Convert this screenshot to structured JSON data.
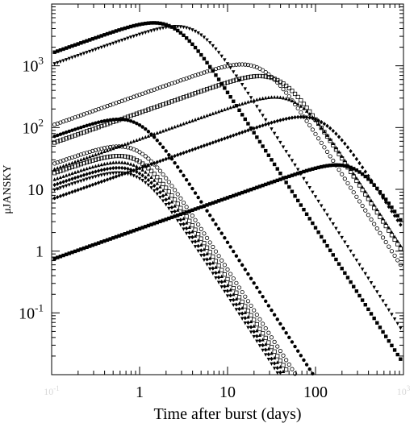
{
  "chart_data": {
    "type": "scatter",
    "title": "",
    "xlabel": "Time after burst (days)",
    "ylabel": "μJANSKY",
    "x_scale": "log",
    "y_scale": "log",
    "xlim": [
      0.1,
      1000
    ],
    "ylim": [
      0.01,
      10000
    ],
    "grid": false,
    "legend": "none",
    "x_ticks": [
      {
        "value": 0.1,
        "base": "10",
        "exp": "-1",
        "faint": true
      },
      {
        "value": 1,
        "label": "1",
        "faint": false
      },
      {
        "value": 10,
        "label": "10",
        "faint": false
      },
      {
        "value": 100,
        "label": "100",
        "faint": false
      },
      {
        "value": 1000,
        "base": "10",
        "exp": "3",
        "faint": true
      }
    ],
    "y_ticks": [
      {
        "value": 0.1,
        "base": "10",
        "exp": "-1"
      },
      {
        "value": 1,
        "label": "1"
      },
      {
        "value": 10,
        "label": "10"
      },
      {
        "value": 100,
        "base": "10",
        "exp": "2"
      },
      {
        "value": 1000,
        "base": "10",
        "exp": "3"
      }
    ],
    "curve_shape": {
      "alpha_rise": 0.5,
      "alpha_decay": -2.2
    },
    "series": [
      {
        "marker": "square-filled",
        "peak_t": 2.5,
        "peak_y": 4000,
        "color": "#000000"
      },
      {
        "marker": "triangle-down",
        "peak_t": 4.5,
        "peak_y": 3500,
        "color": "#000000"
      },
      {
        "marker": "circle-open",
        "peak_t": 25,
        "peak_y": 850,
        "color": "#000000"
      },
      {
        "marker": "square-open",
        "peak_t": 40,
        "peak_y": 550,
        "color": "#000000"
      },
      {
        "marker": "triangle-up",
        "peak_t": 60,
        "peak_y": 250,
        "color": "#000000"
      },
      {
        "marker": "diamond",
        "peak_t": 120,
        "peak_y": 120,
        "color": "#000000"
      },
      {
        "marker": "square-filled",
        "peak_t": 300,
        "peak_y": 20,
        "color": "#000000"
      },
      {
        "marker": "circle-filled",
        "peak_t": 1.0,
        "peak_y": 110,
        "color": "#000000"
      },
      {
        "marker": "circle-open",
        "peak_t": 1.0,
        "peak_y": 40,
        "color": "#000000"
      },
      {
        "marker": "square-open",
        "peak_t": 1.0,
        "peak_y": 28,
        "color": "#000000"
      },
      {
        "marker": "triangle-up",
        "peak_t": 1.0,
        "peak_y": 22,
        "color": "#000000"
      },
      {
        "marker": "diamond",
        "peak_t": 1.0,
        "peak_y": 18,
        "color": "#000000"
      },
      {
        "marker": "triangle-down",
        "peak_t": 1.0,
        "peak_y": 15,
        "color": "#000000"
      }
    ]
  }
}
